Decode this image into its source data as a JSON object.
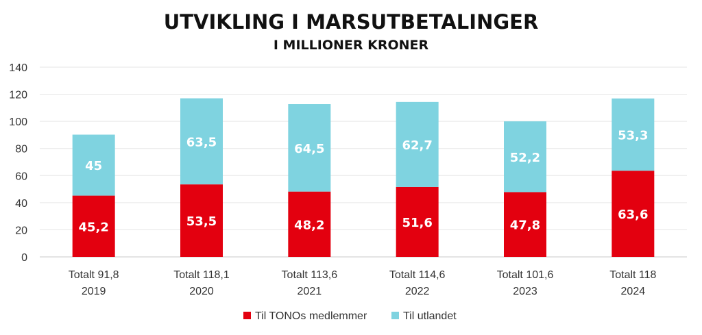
{
  "chart_data": {
    "type": "bar",
    "stacked": true,
    "title": "UTVIKLING I MARSUTBETALINGER",
    "subtitle": "I MILLIONER KRONER",
    "categories": [
      {
        "line1": "Totalt 91,8",
        "line2": "2019"
      },
      {
        "line1": "Totalt 118,1",
        "line2": "2020"
      },
      {
        "line1": "Totalt 113,6",
        "line2": "2021"
      },
      {
        "line1": "Totalt 114,6",
        "line2": "2022"
      },
      {
        "line1": "Totalt 101,6",
        "line2": "2023"
      },
      {
        "line1": "Totalt 118",
        "line2": "2024"
      }
    ],
    "series": [
      {
        "name": "Til TONOs medlemmer",
        "color": "#e3000f",
        "values": [
          45.2,
          53.5,
          48.2,
          51.6,
          47.8,
          63.6
        ],
        "labels": [
          "45,2",
          "53,5",
          "48,2",
          "51,6",
          "47,8",
          "63,6"
        ]
      },
      {
        "name": "Til utlandet",
        "color": "#7fd3e0",
        "values": [
          45,
          63.5,
          64.5,
          62.7,
          52.2,
          53.3
        ],
        "labels": [
          "45",
          "63,5",
          "64,5",
          "62,7",
          "52,2",
          "53,3"
        ]
      }
    ],
    "yticks": [
      "0",
      "20",
      "40",
      "60",
      "80",
      "100",
      "120",
      "140"
    ],
    "ylim": [
      0,
      140
    ],
    "grid": true,
    "legend": "bottom"
  }
}
